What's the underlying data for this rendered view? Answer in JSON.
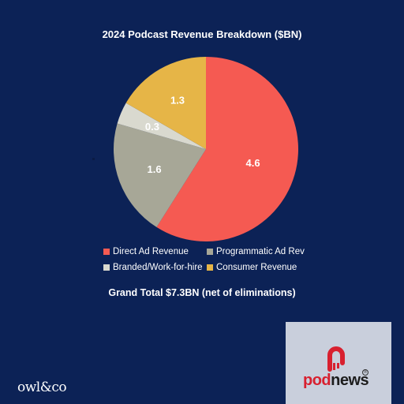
{
  "chart_data": {
    "type": "pie",
    "title": "2024 Podcast Revenue Breakdown ($BN)",
    "categories": [
      "Direct Ad Revenue",
      "Programmatic Ad Rev",
      "Branded/Work-for-hire",
      "Consumer Revenue"
    ],
    "values": [
      4.6,
      1.6,
      0.3,
      1.3
    ],
    "value_labels": [
      "4.6",
      "1.6",
      "0.3",
      "1.3"
    ],
    "colors": [
      "#f55a52",
      "#a7a797",
      "#d9d9cf",
      "#e6b547"
    ],
    "legend_position": "bottom",
    "start_angle": "12 o'clock, clockwise"
  },
  "footer": {
    "total_text": "Grand Total $7.3BN (net of eliminations)",
    "brand_left": "owl&co",
    "brand_right_pod": "pod",
    "brand_right_news": "news"
  }
}
